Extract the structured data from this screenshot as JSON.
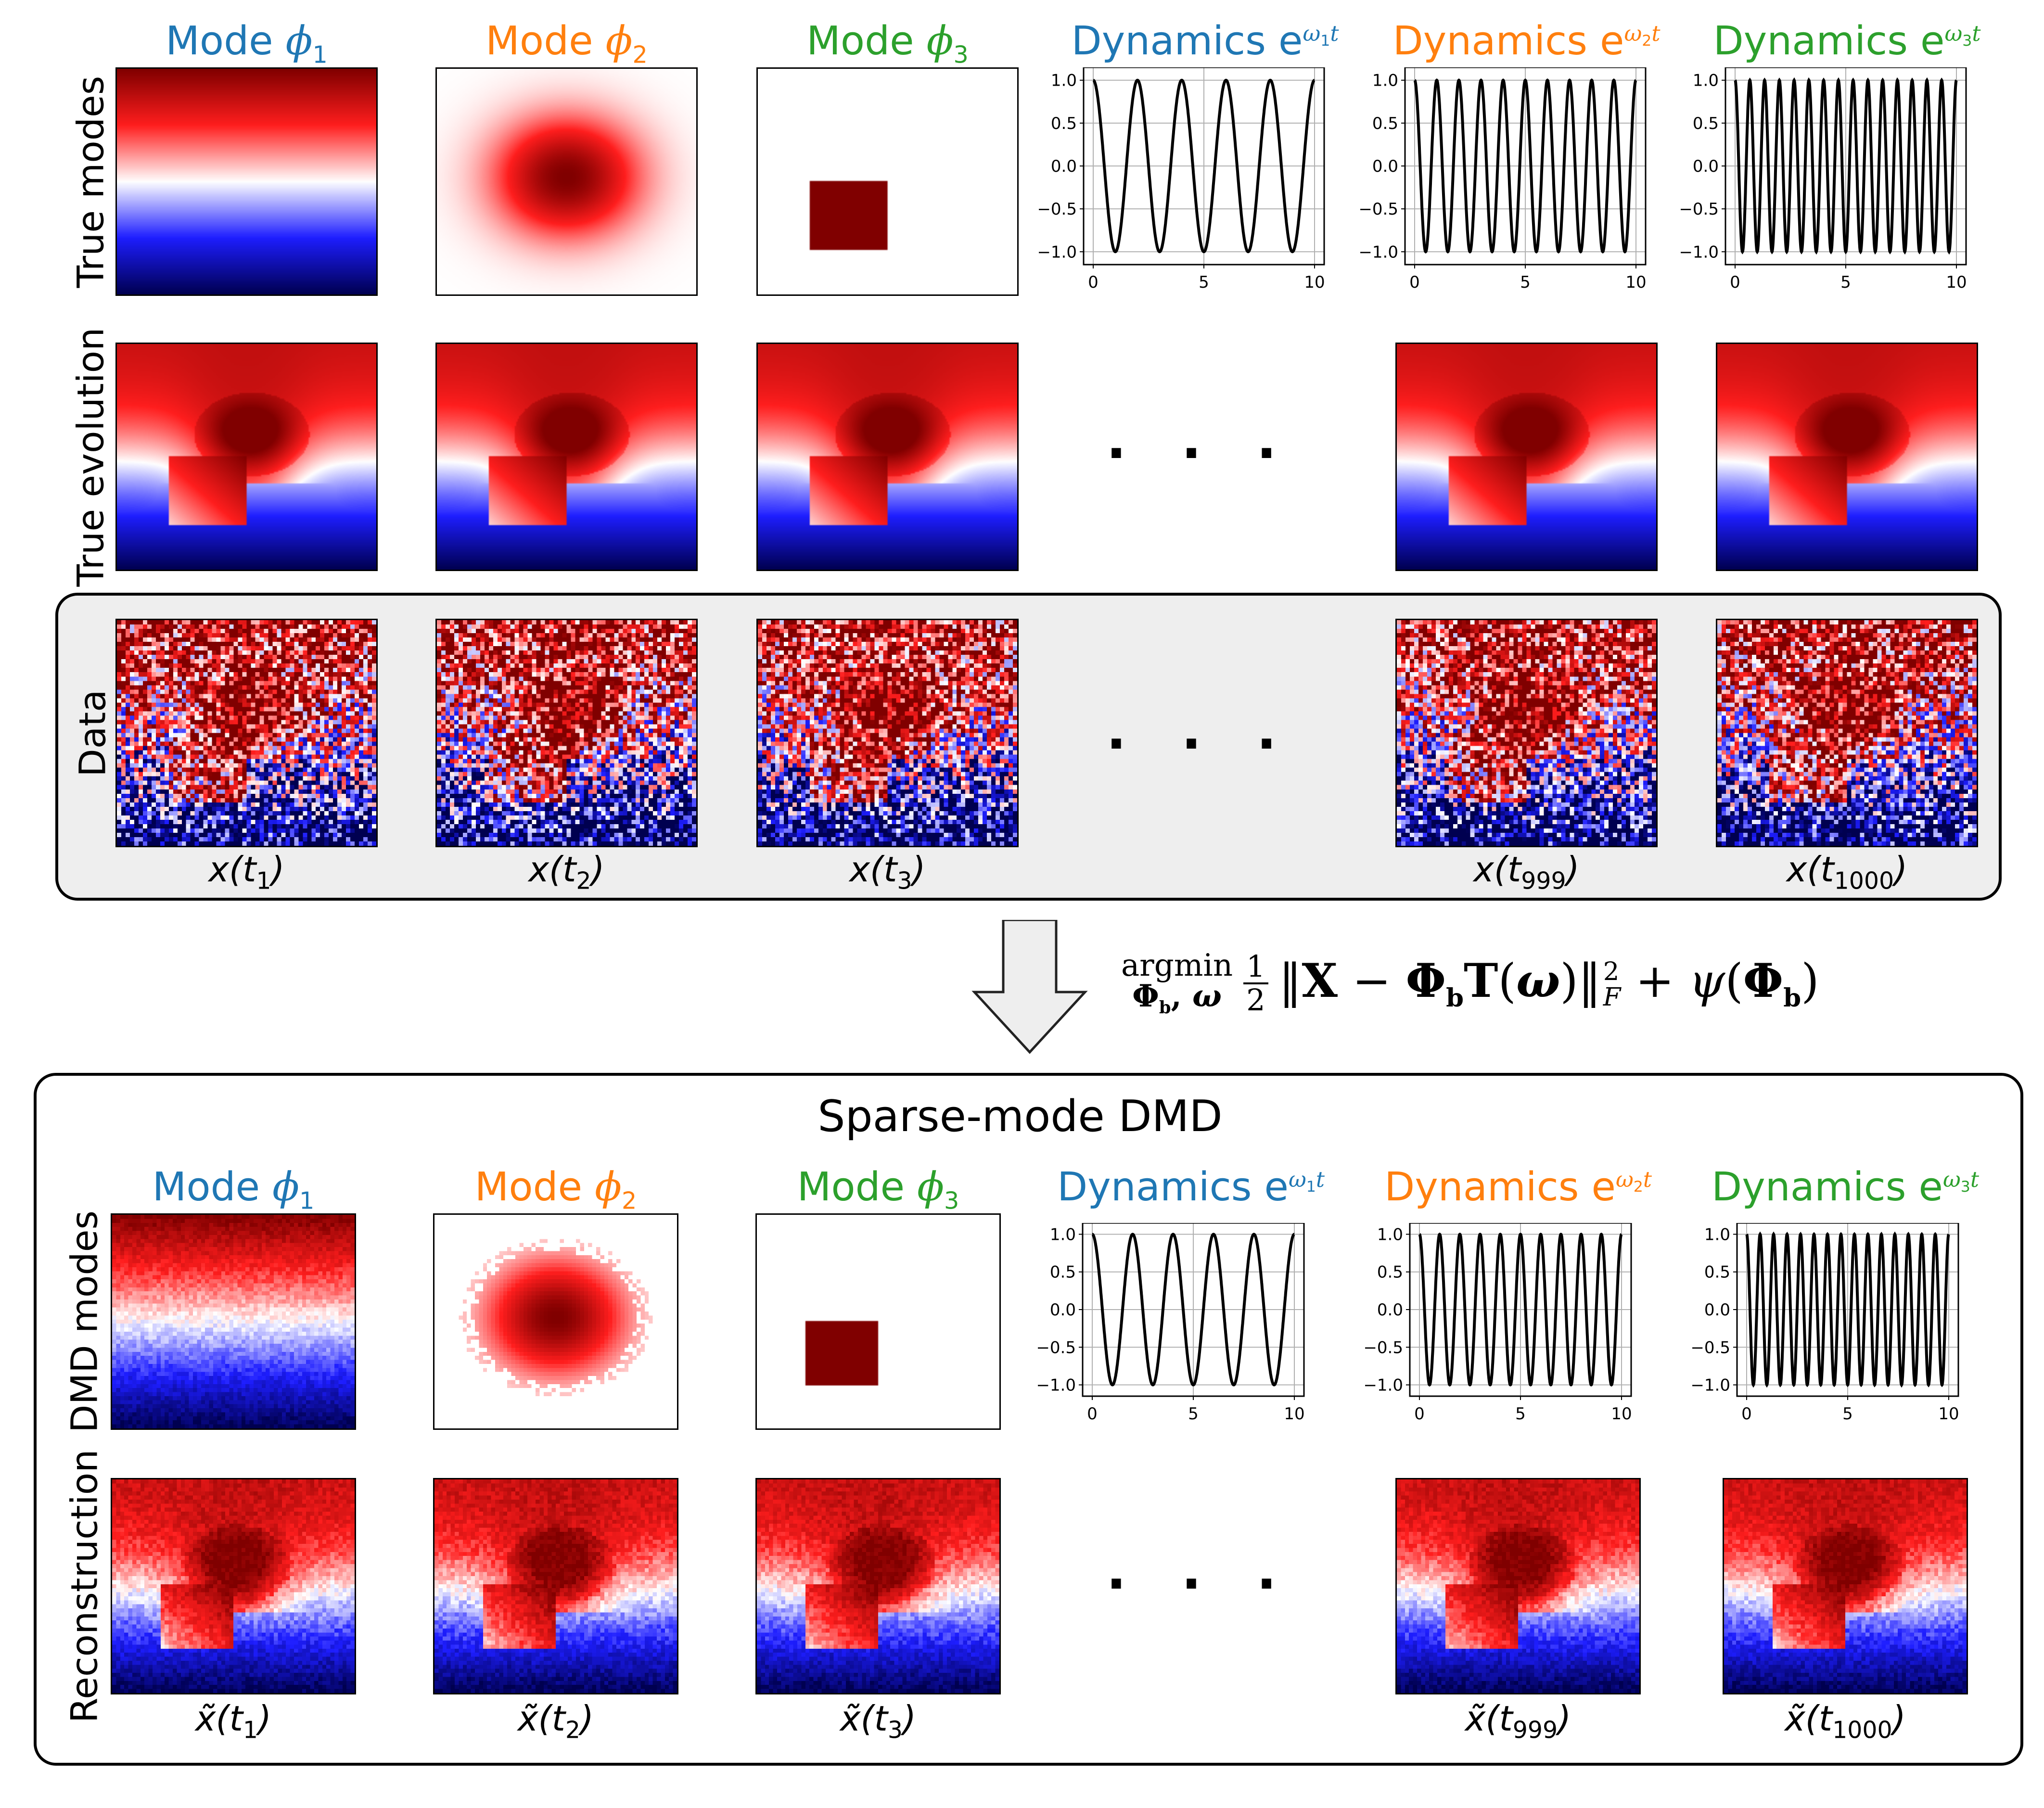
{
  "colors": {
    "mode1": "#1f77b4",
    "mode2": "#ff7f0e",
    "mode3": "#2ca02c",
    "data_box_bg": "#eeeeee"
  },
  "top": {
    "headers": [
      {
        "word": "Mode",
        "sym": "ϕ",
        "sub": "1"
      },
      {
        "word": "Mode",
        "sym": "ϕ",
        "sub": "2"
      },
      {
        "word": "Mode",
        "sym": "ϕ",
        "sub": "3"
      },
      {
        "word": "Dynamics e",
        "sup_w": "ω",
        "sup_sub": "1",
        "sup_t": "t"
      },
      {
        "word": "Dynamics e",
        "sup_w": "ω",
        "sup_sub": "2",
        "sup_t": "t"
      },
      {
        "word": "Dynamics e",
        "sup_w": "ω",
        "sup_sub": "3",
        "sup_t": "t"
      }
    ],
    "row_labels": [
      "True modes",
      "True evolution",
      "Data"
    ],
    "data_captions": [
      {
        "base": "x(t",
        "sub": "1",
        "end": ")"
      },
      {
        "base": "x(t",
        "sub": "2",
        "end": ")"
      },
      {
        "base": "x(t",
        "sub": "3",
        "end": ")"
      },
      {
        "base": "x(t",
        "sub": "999",
        "end": ")"
      },
      {
        "base": "x(t",
        "sub": "1000",
        "end": ")"
      }
    ],
    "ellipsis": "· · ·"
  },
  "formula": {
    "argmin": "argmin",
    "argmin_under": "Φ_b, ω",
    "frac_num": "1",
    "frac_den": "2",
    "body": "‖X − Φ_b T(ω)‖_F² + ψ(Φ_b)",
    "norm_open": "‖",
    "X": "X",
    "minus": " − ",
    "Phi": "Φ",
    "b": "b",
    "T": "T",
    "omega": "ω",
    "norm_close": "‖",
    "sub_F": "F",
    "sup_2": "2",
    "plus": " + ",
    "psi": "ψ"
  },
  "bottom": {
    "title": "Sparse-mode DMD",
    "headers": [
      {
        "word": "Mode",
        "sym": "ϕ",
        "sub": "1"
      },
      {
        "word": "Mode",
        "sym": "ϕ",
        "sub": "2"
      },
      {
        "word": "Mode",
        "sym": "ϕ",
        "sub": "3"
      },
      {
        "word": "Dynamics e",
        "sup_w": "ω",
        "sup_sub": "1",
        "sup_t": "t"
      },
      {
        "word": "Dynamics e",
        "sup_w": "ω",
        "sup_sub": "2",
        "sup_t": "t"
      },
      {
        "word": "Dynamics e",
        "sup_w": "ω",
        "sup_sub": "3",
        "sup_t": "t"
      }
    ],
    "row_labels": [
      "DMD modes",
      "Reconstruction"
    ],
    "recon_captions": [
      {
        "base": "x̃(t",
        "sub": "1",
        "end": ")"
      },
      {
        "base": "x̃(t",
        "sub": "2",
        "end": ")"
      },
      {
        "base": "x̃(t",
        "sub": "3",
        "end": ")"
      },
      {
        "base": "x̃(t",
        "sub": "999",
        "end": ")"
      },
      {
        "base": "x̃(t",
        "sub": "1000",
        "end": ")"
      }
    ],
    "ellipsis": "· · ·"
  },
  "chart_data": [
    {
      "type": "line",
      "title": "Dynamics e^{ω1 t}",
      "x_range": [
        0,
        10
      ],
      "ylim": [
        -1.15,
        1.15
      ],
      "xticks": [
        "0",
        "5",
        "10"
      ],
      "yticks": [
        "1.0",
        "0.5",
        "0.0",
        "−0.5",
        "−1.0"
      ],
      "series": [
        {
          "name": "cos(ω1 t)",
          "function": "cos",
          "cycles": 5
        }
      ],
      "grid": true
    },
    {
      "type": "line",
      "title": "Dynamics e^{ω2 t}",
      "x_range": [
        0,
        10
      ],
      "ylim": [
        -1.15,
        1.15
      ],
      "xticks": [
        "0",
        "5",
        "10"
      ],
      "yticks": [
        "1.0",
        "0.5",
        "0.0",
        "−0.5",
        "−1.0"
      ],
      "series": [
        {
          "name": "cos(ω2 t)",
          "function": "cos",
          "cycles": 10
        }
      ],
      "grid": true
    },
    {
      "type": "line",
      "title": "Dynamics e^{ω3 t}",
      "x_range": [
        0,
        10
      ],
      "ylim": [
        -1.15,
        1.15
      ],
      "xticks": [
        "0",
        "5",
        "10"
      ],
      "yticks": [
        "1.0",
        "0.5",
        "0.0",
        "−0.5",
        "−1.0"
      ],
      "series": [
        {
          "name": "cos(ω3 t)",
          "function": "cos",
          "cycles": 15
        }
      ],
      "grid": true
    }
  ]
}
